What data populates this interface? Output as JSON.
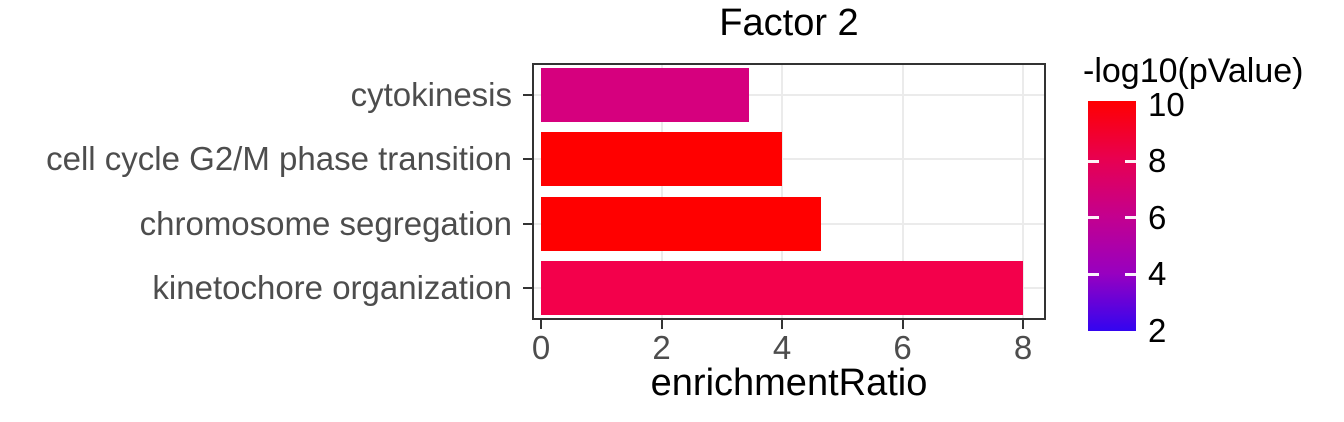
{
  "title": "Factor 2",
  "axes": {
    "x_title": "enrichmentRatio",
    "x_tick_labels": [
      "0",
      "2",
      "4",
      "6",
      "8"
    ],
    "y_categories": [
      "cytokinesis",
      "cell cycle G2/M phase transition",
      "chromosome segregation",
      "kinetochore organization"
    ]
  },
  "legend": {
    "title": "-log10(pValue)",
    "tick_labels": [
      "10",
      "8",
      "6",
      "4",
      "2"
    ],
    "tick_values": [
      10,
      8,
      6,
      4,
      2
    ],
    "dash_values": [
      8,
      6,
      4
    ],
    "gradient_stops": [
      {
        "value": 10,
        "color": "#FF0000"
      },
      {
        "value": 8,
        "color": "#E80050"
      },
      {
        "value": 6,
        "color": "#C4008E"
      },
      {
        "value": 4,
        "color": "#9800C0"
      },
      {
        "value": 2,
        "color": "#3305F0"
      }
    ]
  },
  "chart_data": {
    "type": "bar",
    "orientation": "horizontal",
    "title": "Factor 2",
    "xlabel": "enrichmentRatio",
    "ylabel": "",
    "categories": [
      "cytokinesis",
      "cell cycle G2/M phase transition",
      "chromosome segregation",
      "kinetochore organization"
    ],
    "values": [
      3.45,
      4.0,
      4.65,
      8.0
    ],
    "bar_colors": [
      "#D6007E",
      "#FF0000",
      "#FF0000",
      "#F3004B"
    ],
    "color_metric": "-log10(pValue)",
    "color_values_approx": [
      7.0,
      10.0,
      10.0,
      8.7
    ],
    "x_ticks": [
      0,
      2,
      4,
      6,
      8
    ],
    "xlim": [
      0,
      8.4
    ],
    "grid": "major vertical at x ticks and horizontal at category centers",
    "legend_position": "right",
    "color_scale": {
      "low_value": 2,
      "low_color": "#3305F0",
      "high_value": 10,
      "high_color": "#FF0000"
    }
  },
  "colors": {
    "panel_border": "#333333",
    "grid": "#EBEBEB",
    "axis_text": "#4D4D4D",
    "tick_mark": "#333333",
    "text": "#000000",
    "background": "#FFFFFF"
  }
}
